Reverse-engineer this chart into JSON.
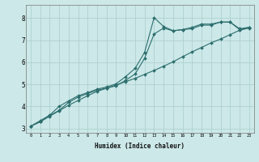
{
  "xlabel": "Humidex (Indice chaleur)",
  "bg_color": "#cce8e8",
  "grid_color": "#aacccc",
  "line_color": "#2d6e6e",
  "xlim": [
    -0.5,
    23.5
  ],
  "ylim": [
    2.8,
    8.6
  ],
  "yticks": [
    3,
    4,
    5,
    6,
    7,
    8
  ],
  "xticks": [
    0,
    1,
    2,
    3,
    4,
    5,
    6,
    7,
    8,
    9,
    10,
    11,
    12,
    13,
    14,
    15,
    16,
    17,
    18,
    19,
    20,
    21,
    22,
    23
  ],
  "line1_x": [
    0,
    1,
    2,
    3,
    4,
    5,
    6,
    7,
    8,
    9,
    10,
    11,
    12,
    13,
    14,
    15,
    16,
    17,
    18,
    19,
    20,
    21,
    22,
    23
  ],
  "line1_y": [
    3.1,
    3.3,
    3.55,
    3.8,
    4.05,
    4.27,
    4.48,
    4.68,
    4.82,
    4.97,
    5.12,
    5.27,
    5.45,
    5.63,
    5.82,
    6.02,
    6.25,
    6.47,
    6.67,
    6.88,
    7.05,
    7.25,
    7.45,
    7.55
  ],
  "line2_x": [
    0,
    1,
    2,
    3,
    4,
    5,
    6,
    7,
    8,
    9,
    10,
    11,
    12,
    13,
    14,
    15,
    16,
    17,
    18,
    19,
    20,
    21,
    22,
    23
  ],
  "line2_y": [
    3.1,
    3.35,
    3.6,
    4.0,
    4.25,
    4.48,
    4.62,
    4.78,
    4.88,
    5.02,
    5.35,
    5.72,
    6.45,
    8.02,
    7.62,
    7.43,
    7.48,
    7.52,
    7.68,
    7.68,
    7.82,
    7.82,
    7.48,
    7.58
  ],
  "line3_x": [
    0,
    1,
    2,
    3,
    4,
    5,
    6,
    7,
    8,
    9,
    10,
    11,
    12,
    13,
    14,
    15,
    16,
    17,
    18,
    19,
    20,
    21,
    22,
    23
  ],
  "line3_y": [
    3.1,
    3.3,
    3.58,
    3.82,
    4.18,
    4.42,
    4.58,
    4.73,
    4.83,
    4.93,
    5.18,
    5.47,
    6.18,
    7.28,
    7.55,
    7.42,
    7.48,
    7.58,
    7.73,
    7.73,
    7.82,
    7.82,
    7.52,
    7.58
  ]
}
